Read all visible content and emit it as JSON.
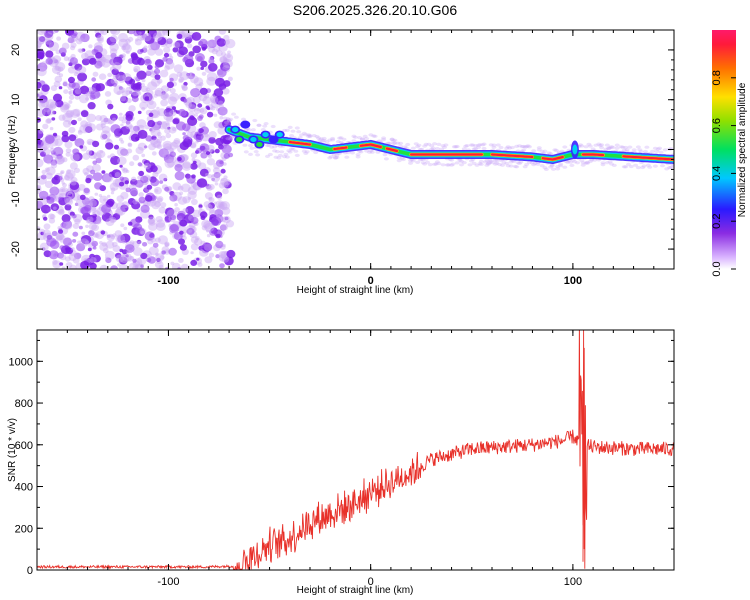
{
  "title": "S206.2025.326.20.10.G06",
  "chart_data": [
    {
      "type": "heatmap",
      "title": "S206.2025.326.20.10.G06",
      "xlabel": "Height of straight line (km)",
      "ylabel": "Frequency (Hz)",
      "xlim": [
        -165,
        150
      ],
      "ylim": [
        -24,
        24
      ],
      "xticks": [
        -100,
        0,
        100
      ],
      "yticks": [
        20,
        10,
        0,
        -10,
        -20
      ],
      "colorbar": {
        "label": "Normalized spectral amplitude",
        "range": [
          0,
          1
        ],
        "ticks": [
          0.0,
          0.2,
          0.4,
          0.6,
          0.8
        ]
      },
      "noise_region_x": [
        -165,
        -72
      ],
      "signal_track": {
        "x": [
          -70,
          -60,
          -50,
          -40,
          -30,
          -20,
          -10,
          0,
          10,
          20,
          40,
          60,
          80,
          90,
          100,
          110,
          130,
          150
        ],
        "freq_hz": [
          4,
          2.5,
          2,
          1.5,
          1,
          0,
          0.5,
          1,
          0,
          -1,
          -1,
          -1,
          -1.5,
          -2,
          -1,
          -1,
          -1.5,
          -2
        ]
      }
    },
    {
      "type": "line",
      "title": "",
      "xlabel": "Height of straight line (km)",
      "ylabel": "SNR (10 * v/v)",
      "xlim": [
        -165,
        150
      ],
      "ylim": [
        0,
        1150
      ],
      "xticks": [
        -100,
        0,
        100
      ],
      "yticks": [
        0,
        200,
        400,
        600,
        800,
        1000
      ],
      "color": "#e8312a",
      "trend": {
        "x": [
          -165,
          -80,
          -65,
          -50,
          -40,
          -30,
          -20,
          -10,
          0,
          10,
          20,
          30,
          50,
          80,
          95,
          100,
          105,
          110,
          130,
          150
        ],
        "y": [
          15,
          15,
          20,
          120,
          150,
          230,
          270,
          310,
          370,
          420,
          470,
          530,
          580,
          600,
          620,
          640,
          600,
          590,
          580,
          580
        ]
      }
    }
  ]
}
